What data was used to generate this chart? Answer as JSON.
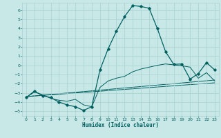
{
  "xlabel": "Humidex (Indice chaleur)",
  "xlim": [
    -0.5,
    23.5
  ],
  "ylim": [
    -5.5,
    6.8
  ],
  "xticks": [
    0,
    1,
    2,
    3,
    4,
    5,
    6,
    7,
    8,
    9,
    10,
    11,
    12,
    13,
    14,
    15,
    16,
    17,
    18,
    19,
    20,
    21,
    22,
    23
  ],
  "yticks": [
    -5,
    -4,
    -3,
    -2,
    -1,
    0,
    1,
    2,
    3,
    4,
    5,
    6
  ],
  "bg_color": "#c8e8e8",
  "line_color": "#006060",
  "grid_color": "#a8d0d0",
  "main_line": {
    "x": [
      0,
      1,
      2,
      3,
      4,
      5,
      6,
      7,
      8,
      9,
      10,
      11,
      12,
      13,
      14,
      15,
      16,
      17,
      18,
      19,
      20,
      21,
      22,
      23
    ],
    "y": [
      -3.5,
      -2.8,
      -3.3,
      -3.5,
      -4.0,
      -4.3,
      -4.5,
      -4.9,
      -4.5,
      -0.5,
      1.8,
      3.7,
      5.3,
      6.5,
      6.4,
      6.2,
      4.0,
      1.5,
      0.1,
      0.15,
      -1.5,
      -0.9,
      0.3,
      -0.5
    ]
  },
  "curve2": {
    "x": [
      0,
      1,
      2,
      3,
      4,
      5,
      6,
      7,
      8,
      9,
      10,
      11,
      12,
      13,
      14,
      15,
      16,
      17,
      18,
      19,
      20,
      21,
      22,
      23
    ],
    "y": [
      -3.5,
      -2.9,
      -3.2,
      -3.6,
      -3.8,
      -3.9,
      -3.7,
      -4.3,
      -4.5,
      -2.4,
      -1.7,
      -1.4,
      -1.2,
      -0.7,
      -0.4,
      -0.2,
      0.0,
      0.15,
      0.05,
      -0.05,
      -0.2,
      -1.4,
      -0.8,
      -1.7
    ]
  },
  "linear1": {
    "x": [
      0,
      23
    ],
    "y": [
      -3.4,
      -1.6
    ]
  },
  "linear2": {
    "x": [
      0,
      23
    ],
    "y": [
      -3.4,
      -1.9
    ]
  }
}
